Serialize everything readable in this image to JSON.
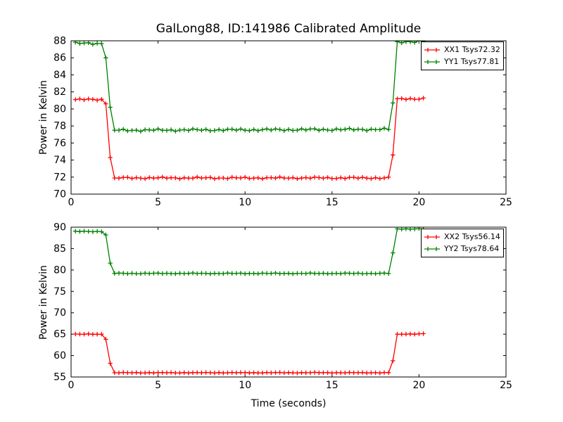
{
  "figure": {
    "background": "#ffffff",
    "frame_color": "#000000",
    "text_color": "#000000"
  },
  "chart_data": {
    "type": "line",
    "title": "GalLong88, ID:141986 Calibrated Amplitude",
    "legend_position": "upper-right",
    "grid": false,
    "marker": "plus",
    "subplots": [
      {
        "ylabel": "Power in Kelvin",
        "xlabel": "",
        "xlim": [
          0,
          25
        ],
        "ylim": [
          70,
          88
        ],
        "xticks": [
          0,
          5,
          10,
          15,
          20,
          25
        ],
        "yticks": [
          70,
          72,
          74,
          76,
          78,
          80,
          82,
          84,
          86,
          88
        ],
        "legend": {
          "entries": [
            "XX1 Tsys72.32",
            "YY1 Tsys77.81"
          ]
        },
        "series": [
          {
            "name": "XX1 Tsys72.32",
            "color": "#ff0000",
            "sample_dt": 0.25,
            "noise_amplitude": 0.07,
            "breakpoints": [
              [
                0.25,
                81.1
              ],
              [
                1.75,
                81.1
              ],
              [
                2.0,
                80.6
              ],
              [
                2.25,
                74.3
              ],
              [
                2.5,
                71.9
              ],
              [
                18.25,
                71.9
              ],
              [
                18.5,
                74.6
              ],
              [
                18.75,
                81.2
              ],
              [
                20.25,
                81.2
              ]
            ]
          },
          {
            "name": "YY1 Tsys77.81",
            "color": "#008000",
            "sample_dt": 0.25,
            "noise_amplitude": 0.09,
            "breakpoints": [
              [
                0.25,
                87.7
              ],
              [
                1.75,
                87.7
              ],
              [
                2.0,
                86.0
              ],
              [
                2.25,
                80.2
              ],
              [
                2.5,
                77.5
              ],
              [
                18.25,
                77.6
              ],
              [
                18.5,
                80.7
              ],
              [
                18.75,
                87.9
              ],
              [
                20.25,
                87.9
              ]
            ]
          }
        ]
      },
      {
        "ylabel": "Power in Kelvin",
        "xlabel": "Time (seconds)",
        "xlim": [
          0,
          25
        ],
        "ylim": [
          55,
          90
        ],
        "xticks": [
          0,
          5,
          10,
          15,
          20,
          25
        ],
        "yticks": [
          55,
          60,
          65,
          70,
          75,
          80,
          85,
          90
        ],
        "legend": {
          "entries": [
            "XX2 Tsys56.14",
            "YY2 Tsys78.64"
          ]
        },
        "series": [
          {
            "name": "XX2 Tsys56.14",
            "color": "#ff0000",
            "sample_dt": 0.25,
            "noise_amplitude": 0.05,
            "breakpoints": [
              [
                0.25,
                65.0
              ],
              [
                1.75,
                65.0
              ],
              [
                2.0,
                63.8
              ],
              [
                2.25,
                58.2
              ],
              [
                2.5,
                56.0
              ],
              [
                18.25,
                56.0
              ],
              [
                18.5,
                58.8
              ],
              [
                18.75,
                65.0
              ],
              [
                20.25,
                65.1
              ]
            ]
          },
          {
            "name": "YY2 Tsys78.64",
            "color": "#008000",
            "sample_dt": 0.25,
            "noise_amplitude": 0.06,
            "breakpoints": [
              [
                0.25,
                89.0
              ],
              [
                1.75,
                89.0
              ],
              [
                2.0,
                88.2
              ],
              [
                2.25,
                81.6
              ],
              [
                2.5,
                79.2
              ],
              [
                18.25,
                79.2
              ],
              [
                18.5,
                84.0
              ],
              [
                18.75,
                89.6
              ],
              [
                20.25,
                89.6
              ]
            ]
          }
        ]
      }
    ]
  }
}
